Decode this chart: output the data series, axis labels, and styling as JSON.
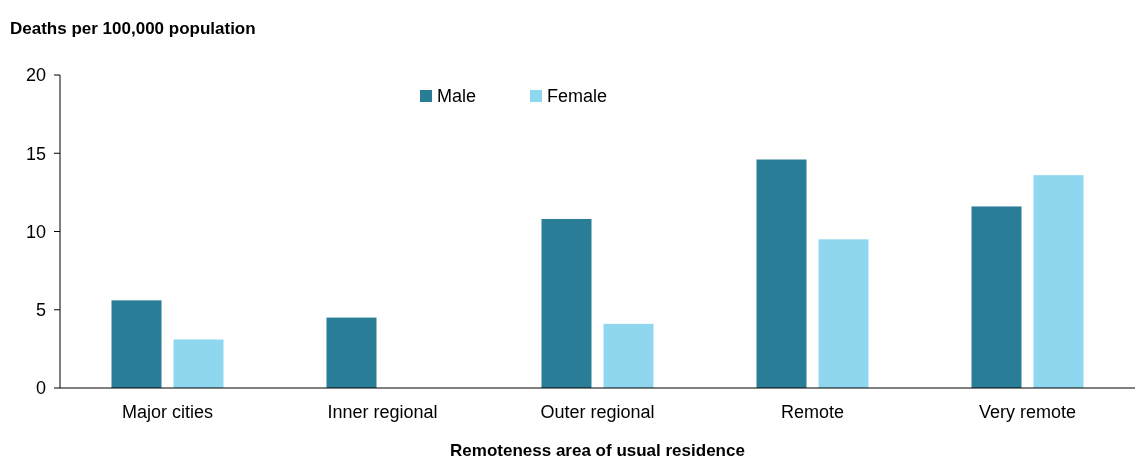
{
  "chart_data": {
    "type": "bar",
    "ylabel": "Deaths per 100,000 population",
    "xlabel": "Remoteness area of usual residence",
    "categories": [
      "Major cities",
      "Inner regional",
      "Outer regional",
      "Remote",
      "Very remote"
    ],
    "series": [
      {
        "name": "Male",
        "color": "#2a7d96",
        "values": [
          5.6,
          4.5,
          10.8,
          14.6,
          11.6
        ]
      },
      {
        "name": "Female",
        "color": "#8fd7ef",
        "values": [
          3.1,
          null,
          4.1,
          9.5,
          13.6
        ]
      }
    ],
    "ylim": [
      0,
      20
    ],
    "yticks": [
      0,
      5,
      10,
      15,
      20
    ],
    "grid": false,
    "legend": "top"
  }
}
